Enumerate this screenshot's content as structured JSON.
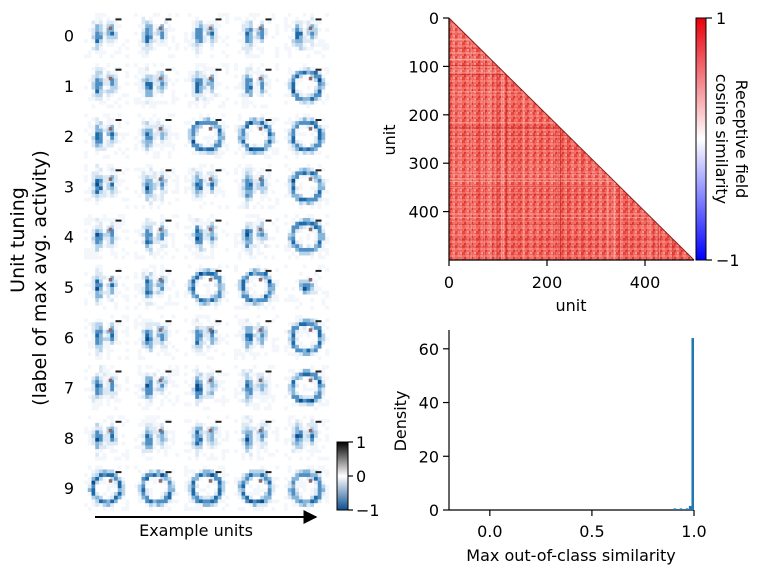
{
  "chart_data": [
    {
      "type": "heatmap",
      "panel": "unit-tuning-grid",
      "ylabel": "Unit tuning\n(label of max avg. activity)",
      "xlabel": "Example units",
      "row_labels": [
        "0",
        "1",
        "2",
        "3",
        "4",
        "5",
        "6",
        "7",
        "8",
        "9"
      ],
      "units_per_row": 5,
      "colorbar": {
        "ticks": [
          "1",
          "0",
          "−1"
        ],
        "range": [
          -1,
          1
        ],
        "colormap": "white-gray-black / blue"
      },
      "pattern_rows": [
        [
          "digit",
          "digit",
          "digit",
          "digit",
          "digit"
        ],
        [
          "digit",
          "digit",
          "digit",
          "digit",
          "ring"
        ],
        [
          "digit",
          "digit",
          "ring",
          "ring",
          "ring"
        ],
        [
          "digit",
          "digit",
          "digit",
          "digit",
          "ring"
        ],
        [
          "digit",
          "digit",
          "digit",
          "digit",
          "ring"
        ],
        [
          "digit",
          "digit",
          "ring",
          "ring",
          "blob"
        ],
        [
          "digit",
          "digit",
          "digit",
          "digit",
          "ring"
        ],
        [
          "digit",
          "digit",
          "digit",
          "digit",
          "ring"
        ],
        [
          "digit",
          "digit",
          "digit",
          "digit",
          "digit"
        ],
        [
          "ring",
          "ring",
          "ring",
          "ring",
          "ring"
        ]
      ]
    },
    {
      "type": "heatmap",
      "panel": "receptive-field-similarity",
      "xlabel": "unit",
      "ylabel": "unit",
      "xlim": [
        0,
        500
      ],
      "ylim": [
        0,
        500
      ],
      "x_ticks": [
        0,
        200,
        400
      ],
      "y_ticks": [
        0,
        100,
        200,
        300,
        400
      ],
      "lower_triangle_only": true,
      "colorbar": {
        "label": "Receptive field\ncosine similarity",
        "ticks": [
          "1",
          "−1"
        ],
        "range": [
          -1,
          1
        ],
        "colormap": "blue-white-red"
      },
      "typical_similarity": 0.75
    },
    {
      "type": "bar",
      "panel": "max-out-of-class-histogram",
      "xlabel": "Max out-of-class similarity",
      "ylabel": "Density",
      "xlim": [
        -0.2,
        1.0
      ],
      "ylim": [
        0,
        67
      ],
      "x_ticks": [
        "0.0",
        "0.5",
        "1.0"
      ],
      "y_ticks": [
        "0",
        "20",
        "40",
        "60"
      ],
      "bin_width": 0.0125,
      "bins": [
        {
          "x": 0.9,
          "density": 0.6
        },
        {
          "x": 0.93,
          "density": 0.6
        },
        {
          "x": 0.96,
          "density": 0.6
        },
        {
          "x": 0.975,
          "density": 1.5
        },
        {
          "x": 0.9875,
          "density": 64
        }
      ],
      "color": "#1f77b4"
    }
  ]
}
